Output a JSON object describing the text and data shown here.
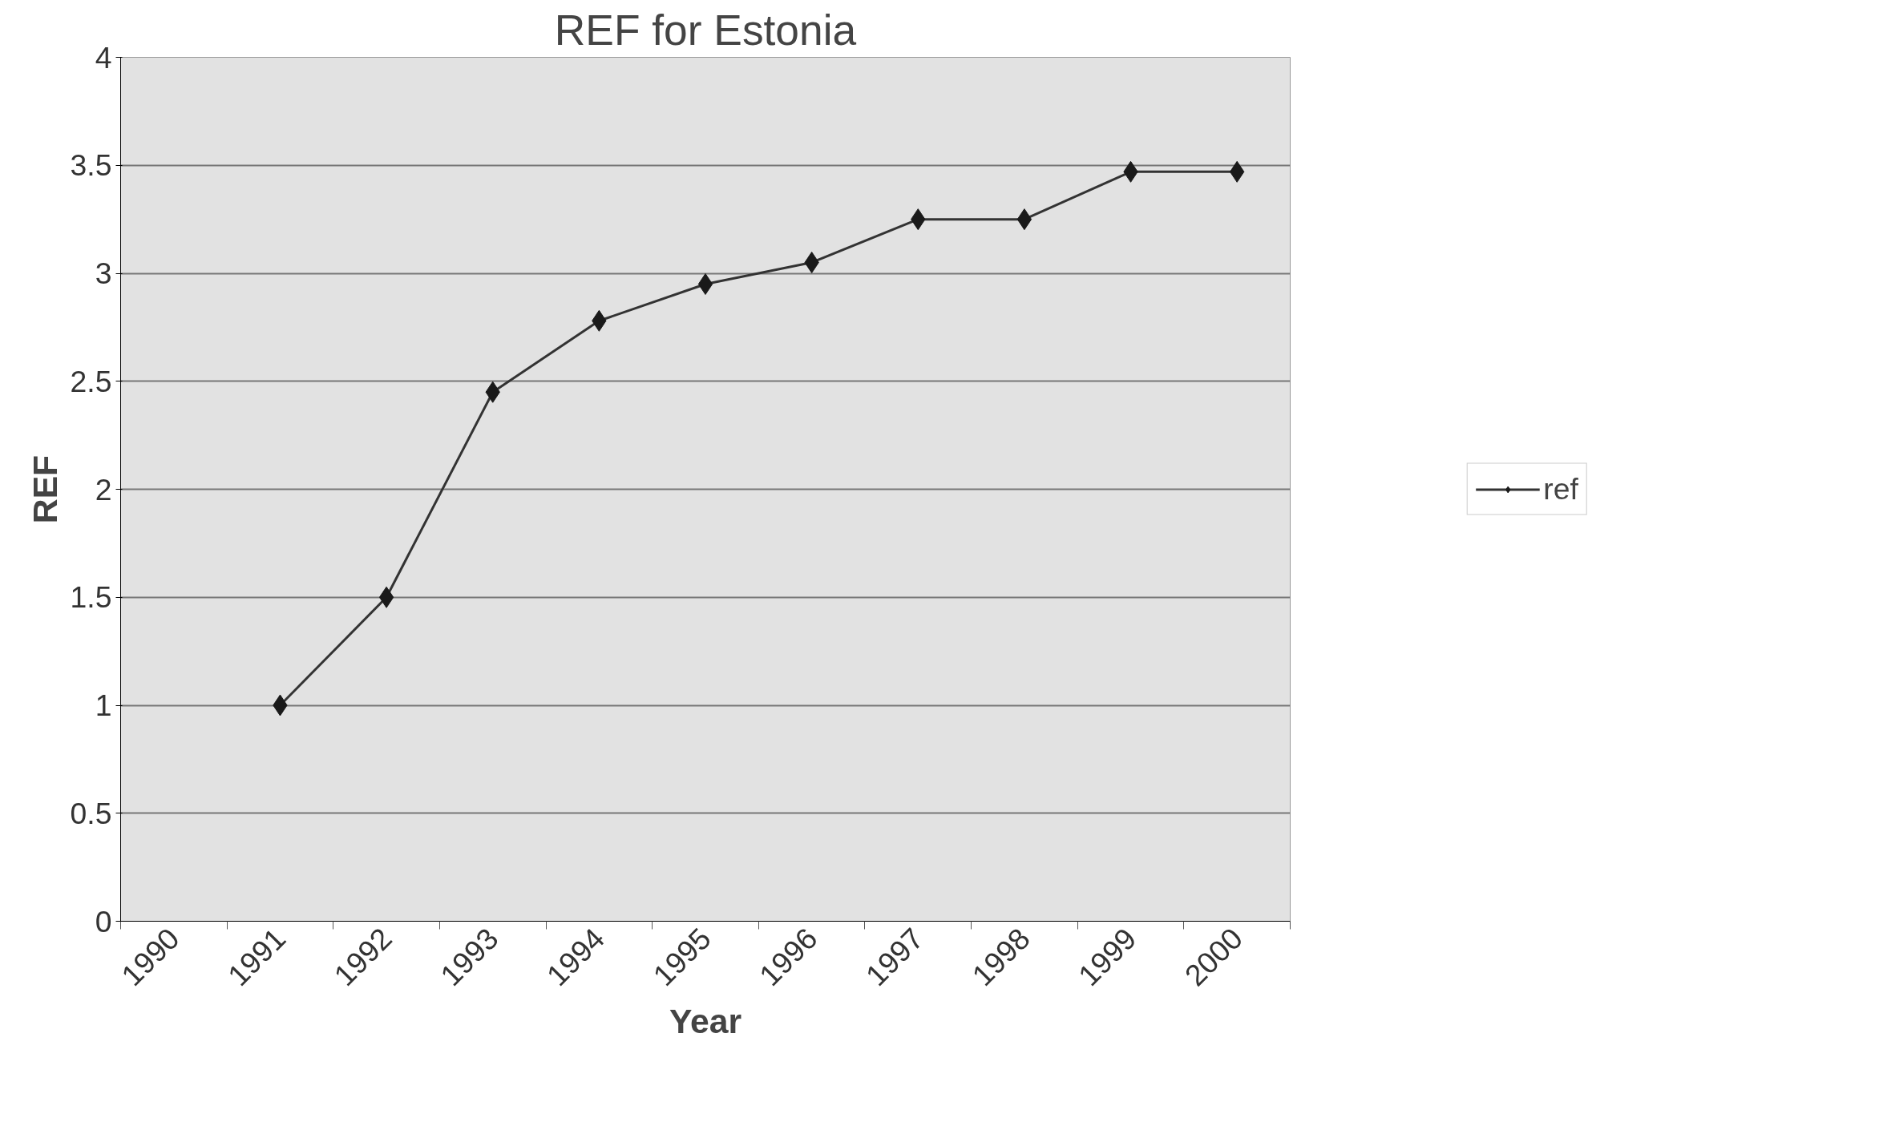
{
  "chart_data": {
    "type": "line",
    "title": "REF for Estonia",
    "xlabel": "Year",
    "ylabel": "REF",
    "categories": [
      "1990",
      "1991",
      "1992",
      "1993",
      "1994",
      "1995",
      "1996",
      "1997",
      "1998",
      "1999",
      "2000"
    ],
    "series": [
      {
        "name": "ref",
        "color": "#1a1a1a",
        "values": [
          null,
          1,
          1.5,
          2.45,
          2.78,
          2.95,
          3.05,
          3.25,
          3.25,
          3.47,
          3.47
        ]
      }
    ],
    "ylim": [
      0,
      4
    ],
    "yticks": [
      0,
      0.5,
      1,
      1.5,
      2,
      2.5,
      3,
      3.5,
      4
    ],
    "grid": "y",
    "legend": "right",
    "marker": "diamond",
    "line_style": "solid"
  }
}
